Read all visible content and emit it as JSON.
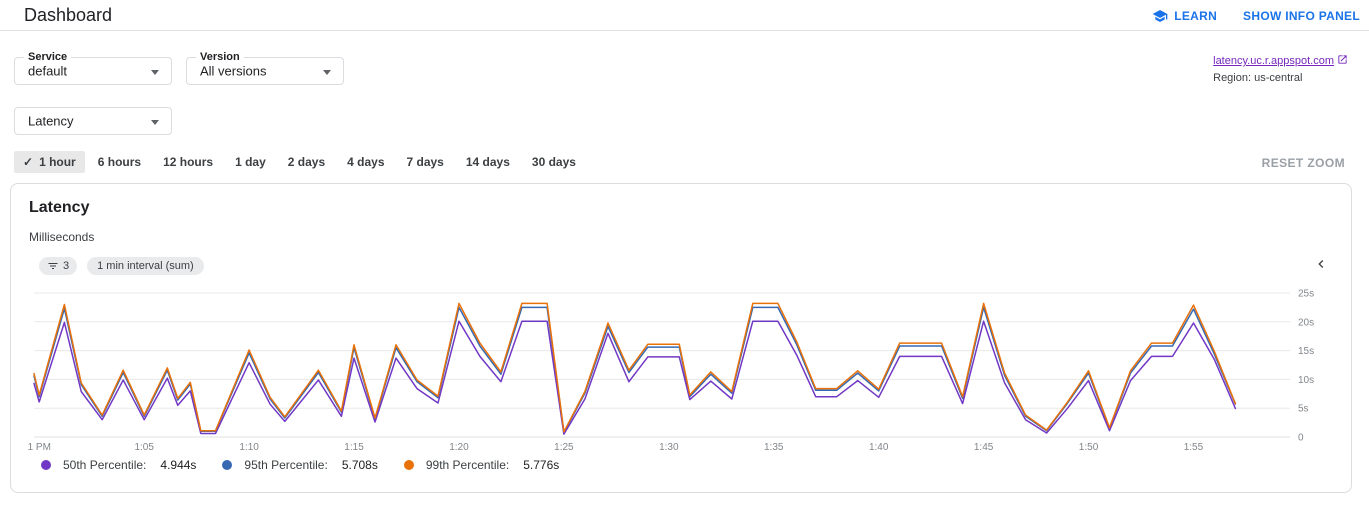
{
  "header": {
    "title": "Dashboard",
    "learn_label": "LEARN",
    "show_info_panel_label": "SHOW INFO PANEL"
  },
  "filters": {
    "service": {
      "label": "Service",
      "value": "default"
    },
    "version": {
      "label": "Version",
      "value": "All versions"
    },
    "metric": {
      "value": "Latency"
    },
    "app_link": "latency.uc.r.appspot.com",
    "region": "Region: us-central"
  },
  "time_ranges": {
    "selected": "1 hour",
    "options": [
      "1 hour",
      "6 hours",
      "12 hours",
      "1 day",
      "2 days",
      "4 days",
      "7 days",
      "14 days",
      "30 days"
    ],
    "reset_zoom_label": "RESET ZOOM"
  },
  "chart_card": {
    "title": "Latency",
    "subtitle": "Milliseconds",
    "filter_chip_count": "3",
    "interval_chip": "1 min interval (sum)",
    "legend": [
      {
        "label": "50th Percentile:",
        "value": "4.944s",
        "color": "#7138c5"
      },
      {
        "label": "95th Percentile:",
        "value": "5.708s",
        "color": "#3669b2"
      },
      {
        "label": "99th Percentile:",
        "value": "5.776s",
        "color": "#e8710a"
      }
    ]
  },
  "chart_data": {
    "type": "line",
    "title": "Latency",
    "ylabel": "Milliseconds",
    "x_unit": "minutes after 1:00 PM",
    "xlim": [
      -0.25,
      59.6
    ],
    "ylim": [
      0,
      25
    ],
    "grid": "horizontal",
    "legend_position": "bottom",
    "xticks": {
      "labels": [
        "1 PM",
        "1:05",
        "1:10",
        "1:15",
        "1:20",
        "1:25",
        "1:30",
        "1:35",
        "1:40",
        "1:45",
        "1:50",
        "1:55"
      ],
      "t": [
        0,
        5,
        10,
        15,
        20,
        25,
        30,
        35,
        40,
        45,
        50,
        55
      ]
    },
    "yticks": {
      "labels": [
        "0",
        "5s",
        "10s",
        "15s",
        "20s",
        "25s"
      ],
      "values": [
        0,
        5,
        10,
        15,
        20,
        25
      ]
    },
    "t": [
      -0.25,
      0,
      1.2,
      2,
      3,
      4,
      5,
      6.1,
      6.6,
      7.2,
      7.7,
      8.4,
      10,
      11,
      11.7,
      13.3,
      14.4,
      15,
      16,
      17,
      18,
      19,
      20,
      21,
      22,
      23,
      24.2,
      25,
      26,
      27.1,
      28.1,
      29,
      30.5,
      31,
      32,
      33,
      34,
      35.2,
      36.1,
      37,
      38,
      39,
      40,
      41,
      43,
      44,
      45,
      46,
      47,
      48,
      49,
      50,
      51,
      52,
      53,
      54,
      55,
      56,
      57
    ],
    "series": [
      {
        "name": "50th Percentile",
        "current": "4.944s",
        "color": "#7138c5",
        "values": [
          9.3,
          6.1,
          19.9,
          7.9,
          3.0,
          9.9,
          3.0,
          10.2,
          5.5,
          8.0,
          0.6,
          0.6,
          12.9,
          5.7,
          2.7,
          9.9,
          3.6,
          13.7,
          2.6,
          13.7,
          8.4,
          5.9,
          20.1,
          14.0,
          9.6,
          20.1,
          20.1,
          0.5,
          6.6,
          18.0,
          9.6,
          13.9,
          13.9,
          6.5,
          9.7,
          6.6,
          20.1,
          20.1,
          14.2,
          7.0,
          7.0,
          9.8,
          6.9,
          14.0,
          14.0,
          5.8,
          20.1,
          9.4,
          3.0,
          0.7,
          5.0,
          9.8,
          1.1,
          9.8,
          14.0,
          14.0,
          19.8,
          13.4,
          4.944
        ]
      },
      {
        "name": "95th Percentile",
        "current": "5.708s",
        "color": "#3669b2",
        "values": [
          10.6,
          7.0,
          22.3,
          9.1,
          3.6,
          11.2,
          3.6,
          11.6,
          6.4,
          9.2,
          1.0,
          1.0,
          14.6,
          6.6,
          3.3,
          11.2,
          4.3,
          15.5,
          3.1,
          15.5,
          9.6,
          6.8,
          22.5,
          15.8,
          10.9,
          22.5,
          22.5,
          0.8,
          7.6,
          19.2,
          11.2,
          15.6,
          15.6,
          7.0,
          10.9,
          7.6,
          22.5,
          22.5,
          16.0,
          8.1,
          8.1,
          11.1,
          8.0,
          15.8,
          15.8,
          6.7,
          22.5,
          10.7,
          3.6,
          1.1,
          5.9,
          11.1,
          1.5,
          11.1,
          15.8,
          15.8,
          22.2,
          14.3,
          5.708
        ]
      },
      {
        "name": "99th Percentile",
        "current": "5.776s",
        "color": "#e8710a",
        "values": [
          11.0,
          7.3,
          23.0,
          9.4,
          3.8,
          11.6,
          3.8,
          12.0,
          6.7,
          9.5,
          1.1,
          1.1,
          15.1,
          6.9,
          3.5,
          11.6,
          4.5,
          16.0,
          3.3,
          16.0,
          9.9,
          7.1,
          23.2,
          16.3,
          11.3,
          23.2,
          23.2,
          0.9,
          7.9,
          19.8,
          11.6,
          16.1,
          16.1,
          7.3,
          11.3,
          7.9,
          23.2,
          23.2,
          16.5,
          8.4,
          8.4,
          11.5,
          8.3,
          16.3,
          16.3,
          7.0,
          23.2,
          11.1,
          3.8,
          1.2,
          6.1,
          11.5,
          1.6,
          11.5,
          16.3,
          16.3,
          22.9,
          14.8,
          5.776
        ]
      }
    ]
  }
}
